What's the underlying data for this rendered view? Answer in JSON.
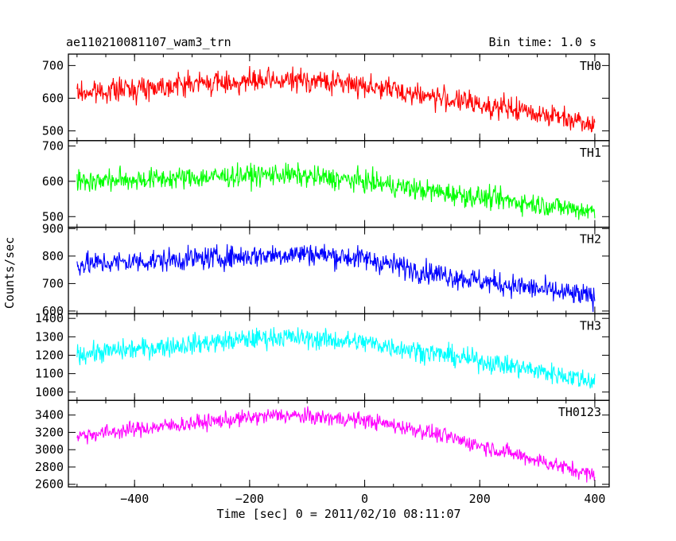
{
  "header": {
    "obs_id": "ae110210081107_wam3_trn",
    "bin_time": "Bin time: 1.0 s"
  },
  "chart_data": {
    "type": "line",
    "title": "ae110210081107_wam3_trn",
    "subtitle": "Bin time: 1.0 s",
    "xlabel": "Time [sec] 0 = 2011/02/10 08:11:07",
    "ylabel": "Counts/sec",
    "xlim": [
      -515,
      425
    ],
    "x_ticks": [
      -400,
      -200,
      0,
      200,
      400
    ],
    "x_start": -500,
    "x_end": 400,
    "bin": 1.0,
    "grid": false,
    "panels": [
      {
        "name": "TH0",
        "color": "#ff0000",
        "ylim": [
          470,
          735
        ],
        "y_ticks": [
          500,
          600,
          700
        ],
        "trend": [
          [
            -500,
            615
          ],
          [
            -300,
            645
          ],
          [
            -100,
            655
          ],
          [
            0,
            640
          ],
          [
            100,
            610
          ],
          [
            200,
            580
          ],
          [
            300,
            555
          ],
          [
            400,
            525
          ]
        ],
        "noise": 25
      },
      {
        "name": "TH1",
        "color": "#00ff00",
        "ylim": [
          470,
          715
        ],
        "y_ticks": [
          500,
          600,
          700
        ],
        "trend": [
          [
            -500,
            600
          ],
          [
            -300,
            610
          ],
          [
            -150,
            620
          ],
          [
            0,
            600
          ],
          [
            100,
            575
          ],
          [
            200,
            555
          ],
          [
            300,
            535
          ],
          [
            400,
            515
          ]
        ],
        "noise": 22
      },
      {
        "name": "TH2",
        "color": "#0000ff",
        "ylim": [
          590,
          905
        ],
        "y_ticks": [
          600,
          700,
          800,
          900
        ],
        "trend": [
          [
            -500,
            770
          ],
          [
            -300,
            790
          ],
          [
            -100,
            810
          ],
          [
            0,
            790
          ],
          [
            100,
            745
          ],
          [
            200,
            710
          ],
          [
            300,
            680
          ],
          [
            400,
            650
          ]
        ],
        "noise": 30
      },
      {
        "name": "TH3",
        "color": "#00ffff",
        "ylim": [
          955,
          1425
        ],
        "y_ticks": [
          1000,
          1100,
          1200,
          1300,
          1400
        ],
        "trend": [
          [
            -500,
            1205
          ],
          [
            -300,
            1260
          ],
          [
            -150,
            1300
          ],
          [
            0,
            1270
          ],
          [
            100,
            1220
          ],
          [
            200,
            1170
          ],
          [
            300,
            1115
          ],
          [
            400,
            1060
          ]
        ],
        "noise": 40
      },
      {
        "name": "TH0123",
        "color": "#ff00ff",
        "ylim": [
          2570,
          3570
        ],
        "y_ticks": [
          2600,
          2800,
          3000,
          3200,
          3400
        ],
        "trend": [
          [
            -500,
            3160
          ],
          [
            -350,
            3270
          ],
          [
            -150,
            3400
          ],
          [
            0,
            3340
          ],
          [
            100,
            3220
          ],
          [
            200,
            3050
          ],
          [
            300,
            2880
          ],
          [
            400,
            2700
          ]
        ],
        "noise": 65
      }
    ]
  }
}
